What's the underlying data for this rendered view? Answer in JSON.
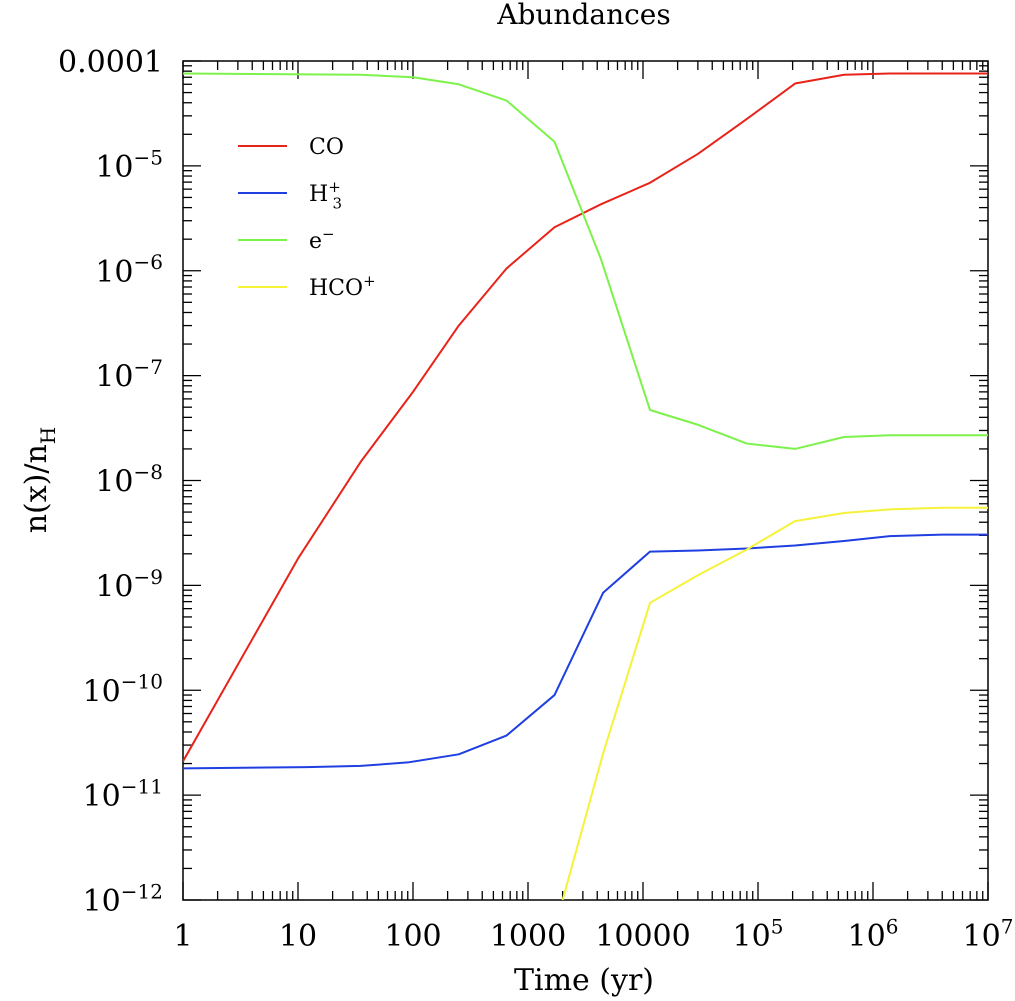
{
  "chart_data": {
    "type": "line",
    "title": "Abundances",
    "xlabel": "Time (yr)",
    "ylabel": "n(x)/n_H",
    "xscale": "log",
    "yscale": "log",
    "xlim": [
      1,
      10000000
    ],
    "ylim": [
      1e-12,
      0.0001
    ],
    "grid": false,
    "legend_position": "top-left",
    "x_tick_labels": [
      "1",
      "10",
      "100",
      "1000",
      "10000",
      "10^5",
      "10^6",
      "10^7"
    ],
    "y_tick_labels": [
      "10^-12",
      "10^-11",
      "10^-10",
      "10^-9",
      "10^-8",
      "10^-7",
      "10^-6",
      "10^-5",
      "0.0001"
    ],
    "series": [
      {
        "name": "CO",
        "color": "#e8231a",
        "points": [
          [
            1,
            2.1e-11
          ],
          [
            10,
            1.8e-09
          ],
          [
            35,
            1.5e-08
          ],
          [
            100,
            7e-08
          ],
          [
            250,
            3e-07
          ],
          [
            650,
            1.05e-06
          ],
          [
            1700,
            2.6e-06
          ],
          [
            4300,
            4.3e-06
          ],
          [
            11500,
            6.9e-06
          ],
          [
            30000,
            1.3e-05
          ],
          [
            80000,
            2.8e-05
          ],
          [
            210000,
            6.1e-05
          ],
          [
            560000,
            7.4e-05
          ],
          [
            1400000,
            7.6e-05
          ],
          [
            10000000,
            7.6e-05
          ]
        ]
      },
      {
        "name": "H3+",
        "color": "#1f3fe0",
        "points": [
          [
            1,
            1.8e-11
          ],
          [
            12,
            1.85e-11
          ],
          [
            35,
            1.9e-11
          ],
          [
            90,
            2.05e-11
          ],
          [
            250,
            2.45e-11
          ],
          [
            650,
            3.7e-11
          ],
          [
            1700,
            9e-11
          ],
          [
            4500,
            8.5e-10
          ],
          [
            11500,
            2.1e-09
          ],
          [
            30000,
            2.15e-09
          ],
          [
            80000,
            2.25e-09
          ],
          [
            210000,
            2.4e-09
          ],
          [
            560000,
            2.65e-09
          ],
          [
            1400000,
            2.95e-09
          ],
          [
            4000000,
            3.05e-09
          ],
          [
            10000000,
            3.05e-09
          ]
        ]
      },
      {
        "name": "e-",
        "color": "#7cf24a",
        "points": [
          [
            1,
            7.6e-05
          ],
          [
            35,
            7.4e-05
          ],
          [
            100,
            7e-05
          ],
          [
            250,
            6e-05
          ],
          [
            650,
            4.2e-05
          ],
          [
            1700,
            1.7e-05
          ],
          [
            4300,
            1.3e-06
          ],
          [
            11500,
            4.7e-08
          ],
          [
            30000,
            3.4e-08
          ],
          [
            80000,
            2.25e-08
          ],
          [
            210000,
            2e-08
          ],
          [
            560000,
            2.6e-08
          ],
          [
            1400000,
            2.7e-08
          ],
          [
            10000000,
            2.7e-08
          ]
        ]
      },
      {
        "name": "HCO+",
        "color": "#f5f23a",
        "points": [
          [
            2000,
            1e-12
          ],
          [
            4500,
            2.5e-11
          ],
          [
            11500,
            6.8e-10
          ],
          [
            30000,
            1.25e-09
          ],
          [
            80000,
            2.2e-09
          ],
          [
            210000,
            4.1e-09
          ],
          [
            560000,
            4.9e-09
          ],
          [
            1400000,
            5.3e-09
          ],
          [
            4000000,
            5.5e-09
          ],
          [
            10000000,
            5.5e-09
          ]
        ]
      }
    ]
  }
}
